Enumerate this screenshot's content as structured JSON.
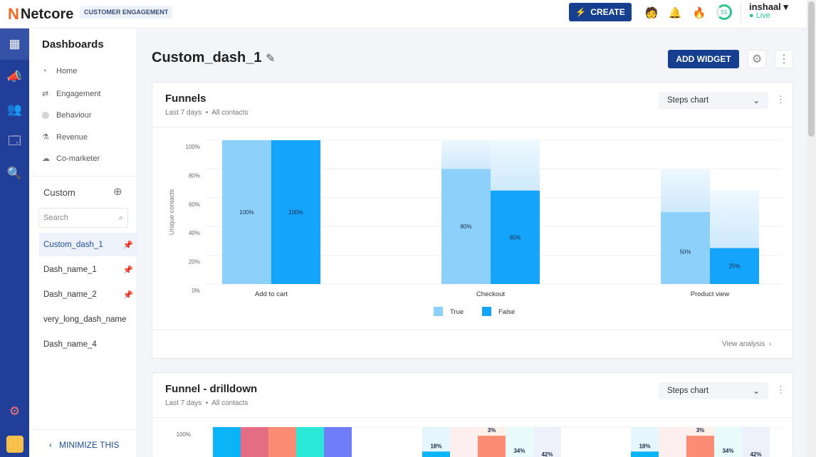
{
  "topbar": {
    "logo_mark": "N",
    "logo": "Netcore",
    "product": "CUSTOMER ENGAGEMENT",
    "create": "CREATE",
    "score": "55",
    "user": "inshaal",
    "status": "Live"
  },
  "sidebar": {
    "title": "Dashboards",
    "items": [
      {
        "label": "Home",
        "icon": "home-chart-icon"
      },
      {
        "label": "Engagement",
        "icon": "engagement-icon"
      },
      {
        "label": "Behaviour",
        "icon": "behaviour-icon"
      },
      {
        "label": "Revenue",
        "icon": "revenue-icon"
      },
      {
        "label": "Co-marketer",
        "icon": "co-marketer-icon"
      }
    ],
    "custom_title": "Custom",
    "search_placeholder": "Search",
    "dashboards": [
      {
        "label": "Custom_dash_1",
        "pinned": true,
        "active": true
      },
      {
        "label": "Dash_name_1",
        "pinned": true
      },
      {
        "label": "Dash_name_2",
        "pinned": true
      },
      {
        "label": "very_long_dash_name"
      },
      {
        "label": "Dash_name_4"
      }
    ],
    "minimize": "MINIMIZE THIS"
  },
  "main": {
    "title": "Custom_dash_1",
    "add_widget": "ADD WIDGET"
  },
  "widgets": [
    {
      "title": "Funnels",
      "period": "Last 7 days",
      "audience": "All contacts",
      "chart_type": "Steps chart",
      "footer_link": "View analysis"
    },
    {
      "title": "Funnel - drilldown",
      "period": "Last 7 days",
      "audience": "All contacts",
      "chart_type": "Steps chart"
    }
  ],
  "colors": {
    "rail": "#213e99",
    "accent": "#173f8f",
    "true": "#8dd1fb",
    "false": "#15a4fb"
  },
  "chart_data": [
    {
      "type": "bar",
      "title": "Funnels",
      "ylabel": "Unique contacts",
      "ylim": [
        0,
        100
      ],
      "yticks": [
        "0%",
        "20%",
        "40%",
        "60%",
        "80%",
        "100%"
      ],
      "categories": [
        "Add to cart",
        "Checkout",
        "Product view"
      ],
      "series": [
        {
          "name": "True",
          "values": [
            100,
            80,
            50
          ],
          "labels": [
            "100%",
            "80%",
            "50%"
          ]
        },
        {
          "name": "False",
          "values": [
            100,
            65,
            25
          ],
          "labels": [
            "100%",
            "65%",
            "25%"
          ]
        }
      ],
      "legend": "bottom-center",
      "grid": true
    },
    {
      "type": "bar",
      "title": "Funnel - drilldown",
      "ylim": [
        0,
        100
      ],
      "yticks": [
        "100%"
      ],
      "groups": [
        {
          "values": [
            100,
            100,
            100,
            100,
            100
          ],
          "labels": [
            "",
            "",
            "",
            "",
            ""
          ]
        },
        {
          "values": [
            83,
            0,
            94,
            0,
            0
          ],
          "labels": [
            "18%",
            "",
            "3%",
            "34%",
            "42%"
          ]
        },
        {
          "values": [
            83,
            0,
            94,
            0,
            0
          ],
          "labels": [
            "18%",
            "",
            "3%",
            "34%",
            "42%"
          ]
        }
      ],
      "palette": [
        "#0ab4f7",
        "#e46c85",
        "#fd8c75",
        "#2ae8d8",
        "#6e7cf8"
      ]
    }
  ]
}
